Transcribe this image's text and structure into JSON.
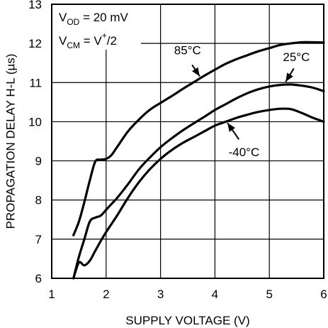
{
  "chart_data": {
    "type": "line",
    "title": "",
    "xlabel": "SUPPLY VOLTAGE (V)",
    "ylabel": "PROPAGATION DELAY H-L (µs)",
    "xlim": [
      1,
      6
    ],
    "ylim": [
      6,
      13
    ],
    "xticks": [
      1,
      2,
      3,
      4,
      5,
      6
    ],
    "yticks": [
      6,
      7,
      8,
      9,
      10,
      11,
      12,
      13
    ],
    "grid": true,
    "conditions": {
      "vod": {
        "main": "V",
        "sub": "OD",
        "rest": " = 20 mV"
      },
      "vcm": {
        "main": "V",
        "sub": "CM",
        "rest_a": " = V",
        "sup": "+",
        "rest_b": "/2"
      }
    },
    "series": [
      {
        "name": "85°C",
        "x": [
          1.4,
          1.5,
          1.6,
          1.7,
          1.8,
          1.9,
          2.0,
          2.1,
          2.2,
          2.4,
          2.6,
          2.8,
          3.0,
          3.2,
          3.4,
          3.6,
          3.8,
          4.0,
          4.2,
          4.4,
          4.6,
          4.8,
          5.0,
          5.2,
          5.4,
          5.6,
          5.8,
          6.0
        ],
        "values": [
          7.1,
          7.45,
          7.95,
          8.5,
          8.98,
          9.03,
          9.05,
          9.15,
          9.35,
          9.75,
          10.05,
          10.3,
          10.48,
          10.65,
          10.83,
          11.0,
          11.17,
          11.33,
          11.48,
          11.6,
          11.7,
          11.8,
          11.88,
          11.96,
          12.0,
          12.03,
          12.03,
          12.02
        ]
      },
      {
        "name": "25°C",
        "x": [
          1.4,
          1.5,
          1.6,
          1.7,
          1.8,
          1.9,
          2.0,
          2.1,
          2.2,
          2.4,
          2.6,
          2.8,
          3.0,
          3.2,
          3.4,
          3.6,
          3.8,
          4.0,
          4.2,
          4.4,
          4.6,
          4.8,
          5.0,
          5.2,
          5.4,
          5.6,
          5.8,
          6.0
        ],
        "values": [
          6.0,
          6.55,
          7.0,
          7.45,
          7.55,
          7.6,
          7.75,
          7.9,
          8.05,
          8.4,
          8.78,
          9.08,
          9.35,
          9.57,
          9.77,
          9.95,
          10.12,
          10.3,
          10.45,
          10.6,
          10.73,
          10.83,
          10.9,
          10.94,
          10.95,
          10.92,
          10.87,
          10.78
        ]
      },
      {
        "name": "-40°C",
        "x": [
          1.4,
          1.5,
          1.6,
          1.7,
          1.8,
          1.9,
          2.0,
          2.2,
          2.4,
          2.6,
          2.8,
          3.0,
          3.2,
          3.4,
          3.6,
          3.8,
          4.0,
          4.2,
          4.4,
          4.6,
          4.8,
          5.0,
          5.2,
          5.4,
          5.6,
          5.8,
          6.0
        ],
        "values": [
          6.0,
          6.4,
          6.33,
          6.45,
          6.7,
          6.95,
          7.18,
          7.6,
          8.05,
          8.45,
          8.78,
          9.05,
          9.27,
          9.45,
          9.6,
          9.75,
          9.9,
          10.0,
          10.1,
          10.18,
          10.25,
          10.3,
          10.33,
          10.32,
          10.22,
          10.1,
          10.0
        ]
      }
    ],
    "annotations": [
      {
        "label": "85°C",
        "text_at": [
          3.25,
          11.72
        ],
        "arrow_from": [
          3.58,
          11.45
        ],
        "arrow_to": [
          3.72,
          11.16
        ]
      },
      {
        "label": "25°C",
        "text_at": [
          5.25,
          11.55
        ],
        "arrow_from": [
          5.45,
          11.36
        ],
        "arrow_to": [
          5.3,
          11.02
        ]
      },
      {
        "label": "-40°C",
        "text_at": [
          4.25,
          9.12
        ],
        "arrow_from": [
          4.44,
          9.55
        ],
        "arrow_to": [
          4.23,
          9.97
        ]
      }
    ]
  }
}
